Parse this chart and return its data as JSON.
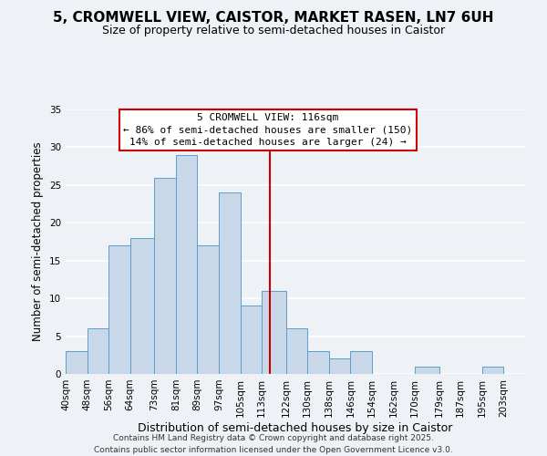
{
  "title": "5, CROMWELL VIEW, CAISTOR, MARKET RASEN, LN7 6UH",
  "subtitle": "Size of property relative to semi-detached houses in Caistor",
  "xlabel": "Distribution of semi-detached houses by size in Caistor",
  "ylabel": "Number of semi-detached properties",
  "bin_labels": [
    "40sqm",
    "48sqm",
    "56sqm",
    "64sqm",
    "73sqm",
    "81sqm",
    "89sqm",
    "97sqm",
    "105sqm",
    "113sqm",
    "122sqm",
    "130sqm",
    "138sqm",
    "146sqm",
    "154sqm",
    "162sqm",
    "170sqm",
    "179sqm",
    "187sqm",
    "195sqm",
    "203sqm"
  ],
  "bin_counts": [
    3,
    6,
    17,
    18,
    26,
    29,
    17,
    24,
    9,
    11,
    6,
    3,
    2,
    3,
    0,
    0,
    1,
    0,
    0,
    1,
    0
  ],
  "bin_edges": [
    40,
    48,
    56,
    64,
    73,
    81,
    89,
    97,
    105,
    113,
    122,
    130,
    138,
    146,
    154,
    162,
    170,
    179,
    187,
    195,
    203,
    211
  ],
  "bar_color": "#c8d8e8",
  "bar_edge_color": "#5a9ec8",
  "reference_line_x": 116,
  "reference_line_color": "#cc0000",
  "annotation_title": "5 CROMWELL VIEW: 116sqm",
  "annotation_line1": "← 86% of semi-detached houses are smaller (150)",
  "annotation_line2": "14% of semi-detached houses are larger (24) →",
  "annotation_box_color": "#ffffff",
  "annotation_box_edge_color": "#cc0000",
  "ylim": [
    0,
    35
  ],
  "yticks": [
    0,
    5,
    10,
    15,
    20,
    25,
    30,
    35
  ],
  "background_color": "#eef2f7",
  "grid_color": "#ffffff",
  "footer_line1": "Contains HM Land Registry data © Crown copyright and database right 2025.",
  "footer_line2": "Contains public sector information licensed under the Open Government Licence v3.0.",
  "title_fontsize": 11,
  "subtitle_fontsize": 9,
  "xlabel_fontsize": 9,
  "ylabel_fontsize": 8.5,
  "tick_fontsize": 7.5,
  "footer_fontsize": 6.5,
  "annotation_fontsize": 8
}
